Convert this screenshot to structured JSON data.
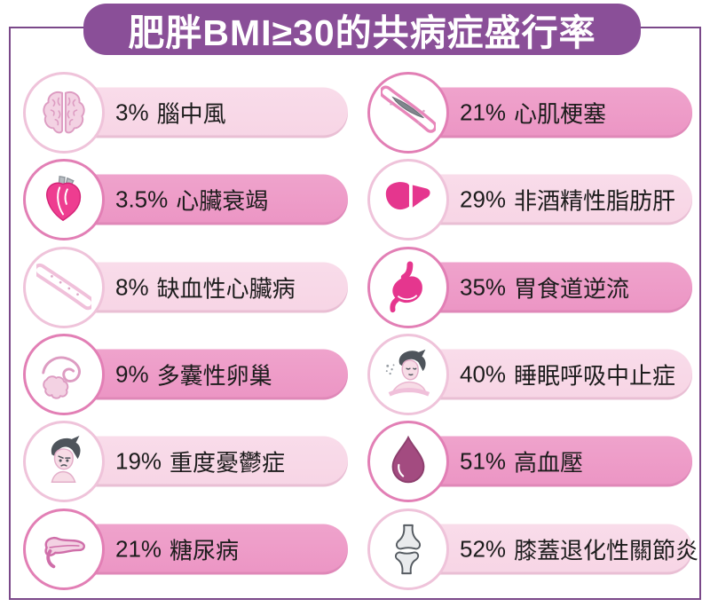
{
  "title": "肥胖BMI≥30的共病症盛行率",
  "colors": {
    "banner_purple": "#8a4f98",
    "frame_purple": "#7a4889",
    "bar_light": "#f7d5e5",
    "bar_light_top": "#f9dcea",
    "bar_dark": "#ec95c4",
    "bar_dark_top": "#efa3cc",
    "ring_light": "#efc3da",
    "ring_dark": "#e27fb5",
    "text": "#1c1c1c"
  },
  "items": [
    {
      "value": "3%",
      "label": "腦中風",
      "icon": "brain-icon",
      "tone": "light"
    },
    {
      "value": "21%",
      "label": "心肌梗塞",
      "icon": "blocked-artery-icon",
      "tone": "dark"
    },
    {
      "value": "3.5%",
      "label": "心臟衰竭",
      "icon": "heart-icon",
      "tone": "dark"
    },
    {
      "value": "29%",
      "label": "非酒精性脂肪肝",
      "icon": "liver-icon",
      "tone": "light"
    },
    {
      "value": "8%",
      "label": "缺血性心臟病",
      "icon": "artery-icon",
      "tone": "light"
    },
    {
      "value": "35%",
      "label": "胃食道逆流",
      "icon": "stomach-icon",
      "tone": "dark"
    },
    {
      "value": "9%",
      "label": "多囊性卵巢",
      "icon": "ovary-icon",
      "tone": "dark"
    },
    {
      "value": "40%",
      "label": "睡眠呼吸中止症",
      "icon": "sleep-apnea-icon",
      "tone": "light"
    },
    {
      "value": "19%",
      "label": "重度憂鬱症",
      "icon": "depressed-person-icon",
      "tone": "light"
    },
    {
      "value": "51%",
      "label": "高血壓",
      "icon": "blood-drop-icon",
      "tone": "dark"
    },
    {
      "value": "21%",
      "label": "糖尿病",
      "icon": "pancreas-icon",
      "tone": "dark"
    },
    {
      "value": "52%",
      "label": "膝蓋退化性關節炎",
      "icon": "knee-joint-icon",
      "tone": "light"
    }
  ],
  "chart_data": {
    "type": "bar",
    "title": "肥胖BMI≥30的共病症盛行率",
    "unit": "%",
    "categories": [
      "腦中風",
      "心臟衰竭",
      "缺血性心臟病",
      "多囊性卵巢",
      "重度憂鬱症",
      "糖尿病",
      "心肌梗塞",
      "非酒精性脂肪肝",
      "胃食道逆流",
      "睡眠呼吸中止症",
      "高血壓",
      "膝蓋退化性關節炎"
    ],
    "values": [
      3,
      3.5,
      8,
      9,
      19,
      21,
      21,
      29,
      35,
      40,
      51,
      52
    ],
    "legend_position": "none",
    "grid": false,
    "layout": "two-column pictogram list, values shown as text labels on pill bars"
  }
}
